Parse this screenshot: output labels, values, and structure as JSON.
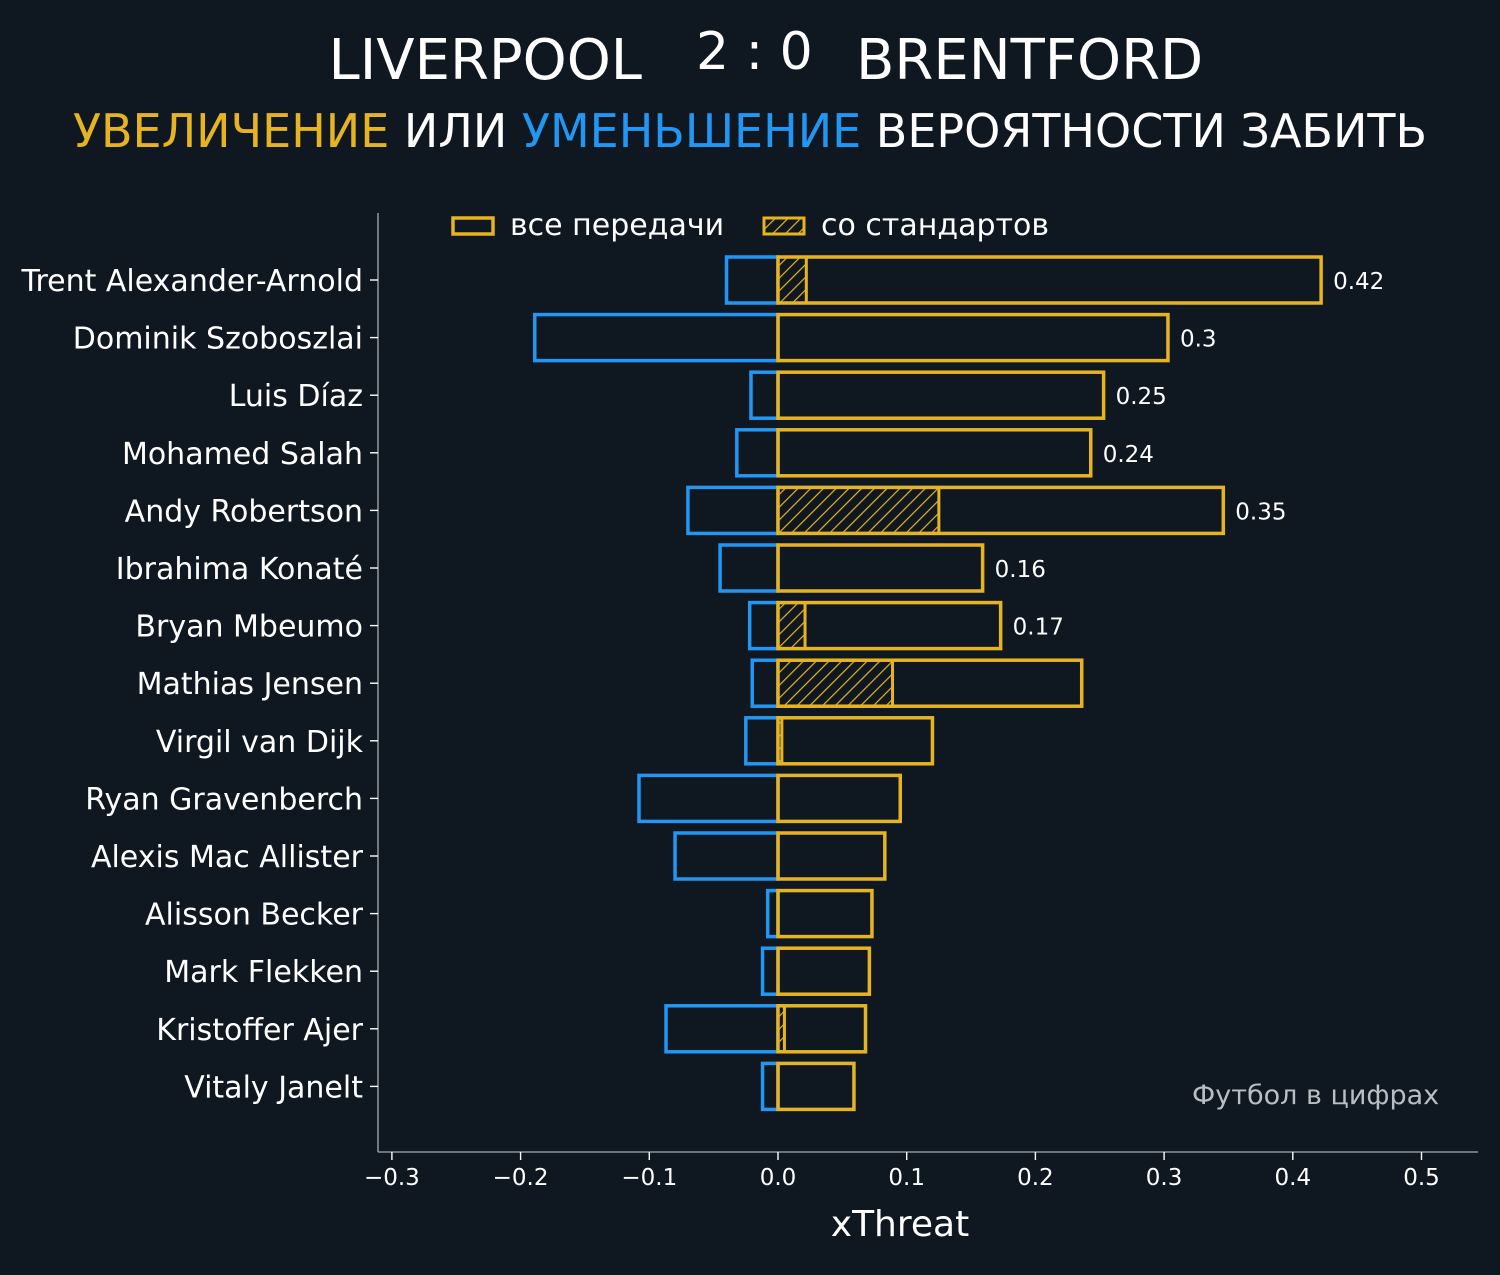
{
  "title": {
    "home_team": "LIVERPOOL",
    "score": "2 : 0",
    "away_team": "BRENTFORD"
  },
  "subtitle": {
    "increase": "УВЕЛИЧЕНИЕ",
    "or": " ИЛИ ",
    "decrease": "УМЕНЬШЕНИЕ",
    "rest": " ВЕРОЯТНОСТИ ЗАБИТЬ"
  },
  "watermark": "Футбол в цифрах",
  "colors": {
    "positive": "#e6b422",
    "negative": "#2196f3",
    "background": "#0f1820",
    "axis": "#8a9298"
  },
  "chart_data": {
    "type": "bar",
    "orientation": "horizontal",
    "xlabel": "xThreat",
    "xlim": [
      -0.3,
      0.5
    ],
    "xticks": [
      "−0.3",
      "−0.2",
      "−0.1",
      "0.0",
      "0.1",
      "0.2",
      "0.3",
      "0.4",
      "0.5"
    ],
    "xtick_values": [
      -0.3,
      -0.2,
      -0.1,
      0.0,
      0.1,
      0.2,
      0.3,
      0.4,
      0.5
    ],
    "legend": {
      "position": "top",
      "entries": [
        {
          "label": "все передачи",
          "style": "outline"
        },
        {
          "label": "со стандартов",
          "style": "hatched"
        }
      ]
    },
    "players": [
      "Trent Alexander-Arnold",
      "Dominik Szoboszlai",
      "Luis Díaz",
      "Mohamed Salah",
      "Andy Robertson",
      "Ibrahima Konaté",
      "Bryan Mbeumo",
      "Mathias Jensen",
      "Virgil van Dijk",
      "Ryan Gravenberch",
      "Alexis Mac Allister",
      "Alisson Becker",
      "Mark Flekken",
      "Kristoffer Ajer",
      "Vitaly Janelt"
    ],
    "positive": [
      0.422,
      0.303,
      0.253,
      0.243,
      0.346,
      0.159,
      0.173,
      0.236,
      0.12,
      0.095,
      0.083,
      0.073,
      0.071,
      0.068,
      0.059
    ],
    "negative": [
      -0.04,
      -0.189,
      -0.021,
      -0.032,
      -0.07,
      -0.045,
      -0.022,
      -0.02,
      -0.025,
      -0.108,
      -0.08,
      -0.008,
      -0.012,
      -0.087,
      -0.012
    ],
    "set_pieces": [
      0.022,
      0.0,
      0.0,
      0.0,
      0.125,
      0.0,
      0.021,
      0.089,
      0.003,
      0.0,
      0.0,
      0.0,
      0.0,
      0.005,
      0.0
    ],
    "value_labels": [
      "0.42",
      "0.3",
      "0.25",
      "0.24",
      "0.35",
      "0.16",
      "0.17",
      "",
      "",
      "",
      "",
      "",
      "",
      "",
      ""
    ]
  }
}
